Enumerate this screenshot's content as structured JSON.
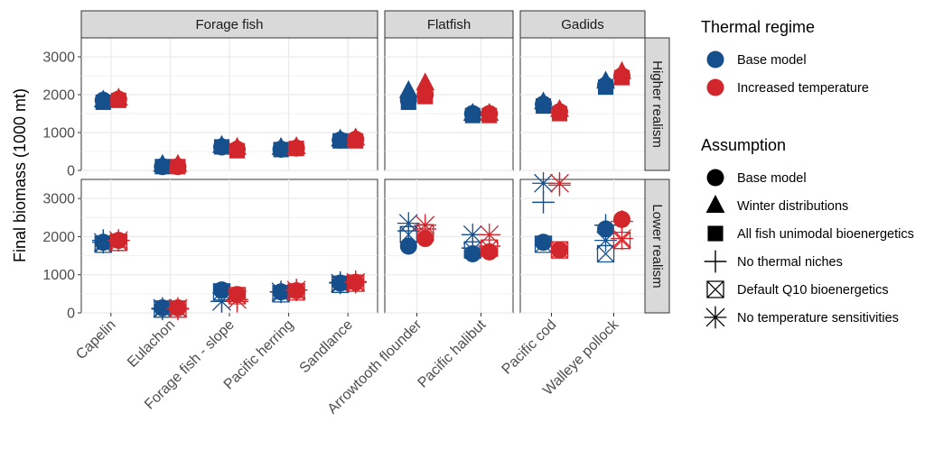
{
  "colors": {
    "base": "#154f8c",
    "increased": "#d1262b",
    "strip": "#d9d9d9",
    "grid": "#ebebeb"
  },
  "chart_data": {
    "type": "scatter",
    "ylabel": "Final biomass (1000 mt)",
    "ylim": [
      0,
      3500
    ],
    "yticks": [
      0,
      1000,
      2000,
      3000
    ],
    "column_facets": [
      {
        "label": "Forage fish",
        "species": [
          "Capelin",
          "Eulachon",
          "Forage fish - slope",
          "Pacific herring",
          "Sandlance"
        ]
      },
      {
        "label": "Flatfish",
        "species": [
          "Arrowtooth flounder",
          "Pacific halibut"
        ]
      },
      {
        "label": "Gadids",
        "species": [
          "Pacific cod",
          "Walleye pollock"
        ]
      }
    ],
    "row_facets": [
      "Higher realism",
      "Lower realism"
    ],
    "legend_color": {
      "title": "Thermal regime",
      "entries": [
        {
          "key": "base",
          "label": "Base model"
        },
        {
          "key": "increased",
          "label": "Increased temperature"
        }
      ]
    },
    "legend_shape": {
      "title": "Assumption",
      "entries": [
        {
          "key": "base",
          "label": "Base model"
        },
        {
          "key": "winter",
          "label": "Winter distributions"
        },
        {
          "key": "unimodal",
          "label": "All fish unimodal bioenergetics"
        },
        {
          "key": "nothermal",
          "label": "No thermal niches"
        },
        {
          "key": "q10",
          "label": "Default Q10 bioenergetics"
        },
        {
          "key": "notemp",
          "label": "No temperature sensitivities"
        }
      ]
    },
    "series": [
      {
        "row": "Higher realism",
        "regime": "base",
        "assumption": "base",
        "values": [
          1850,
          100,
          620,
          560,
          800,
          1850,
          1500,
          1750,
          2250
        ]
      },
      {
        "row": "Higher realism",
        "regime": "base",
        "assumption": "winter",
        "values": [
          1850,
          150,
          650,
          600,
          820,
          2100,
          1500,
          1800,
          2350
        ]
      },
      {
        "row": "Higher realism",
        "regime": "base",
        "assumption": "unimodal",
        "values": [
          1800,
          100,
          620,
          550,
          780,
          1800,
          1450,
          1700,
          2200
        ]
      },
      {
        "row": "Higher realism",
        "regime": "increased",
        "assumption": "base",
        "values": [
          1880,
          100,
          560,
          590,
          820,
          2000,
          1500,
          1550,
          2500
        ]
      },
      {
        "row": "Higher realism",
        "regime": "increased",
        "assumption": "winter",
        "values": [
          1900,
          150,
          600,
          620,
          850,
          2300,
          1500,
          1600,
          2600
        ]
      },
      {
        "row": "Higher realism",
        "regime": "increased",
        "assumption": "unimodal",
        "values": [
          1850,
          100,
          520,
          580,
          780,
          1950,
          1450,
          1500,
          2450
        ]
      },
      {
        "row": "Lower realism",
        "regime": "base",
        "assumption": "base",
        "values": [
          1850,
          130,
          600,
          550,
          780,
          1750,
          1550,
          1850,
          2200
        ]
      },
      {
        "row": "Lower realism",
        "regime": "base",
        "assumption": "nothermal",
        "values": [
          1900,
          100,
          300,
          550,
          800,
          2150,
          1700,
          2900,
          2300
        ]
      },
      {
        "row": "Lower realism",
        "regime": "base",
        "assumption": "q10",
        "values": [
          1800,
          100,
          550,
          500,
          750,
          2050,
          1650,
          1800,
          1550
        ]
      },
      {
        "row": "Lower realism",
        "regime": "base",
        "assumption": "notemp",
        "values": [
          1850,
          120,
          300,
          550,
          780,
          2350,
          2050,
          3400,
          1900
        ]
      },
      {
        "row": "Lower realism",
        "regime": "increased",
        "assumption": "base",
        "values": [
          1900,
          130,
          480,
          580,
          800,
          1950,
          1600,
          1650,
          2450
        ]
      },
      {
        "row": "Lower realism",
        "regime": "increased",
        "assumption": "nothermal",
        "values": [
          1900,
          100,
          300,
          600,
          820,
          2200,
          1750,
          3350,
          2400
        ]
      },
      {
        "row": "Lower realism",
        "regime": "increased",
        "assumption": "q10",
        "values": [
          1850,
          100,
          450,
          550,
          780,
          2100,
          1700,
          1650,
          1900
        ]
      },
      {
        "row": "Lower realism",
        "regime": "increased",
        "assumption": "notemp",
        "values": [
          1900,
          120,
          350,
          600,
          800,
          2300,
          2050,
          3400,
          1950
        ]
      }
    ]
  }
}
